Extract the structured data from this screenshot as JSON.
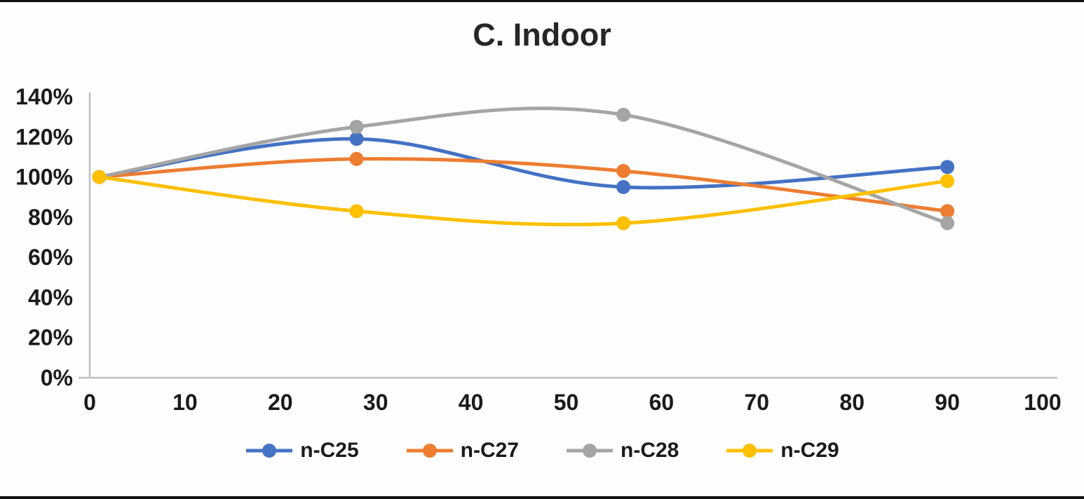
{
  "chart_data": {
    "type": "line",
    "title": "C. Indoor",
    "x": [
      1,
      28,
      56,
      90
    ],
    "series": [
      {
        "name": "n-C25",
        "color": "#4472C4",
        "values": [
          100,
          119,
          95,
          105
        ]
      },
      {
        "name": "n-C27",
        "color": "#ED7D31",
        "values": [
          100,
          109,
          103,
          83
        ]
      },
      {
        "name": "n-C28",
        "color": "#A5A5A5",
        "values": [
          100,
          125,
          131,
          77
        ]
      },
      {
        "name": "n-C29",
        "color": "#FFC000",
        "values": [
          100,
          83,
          77,
          98
        ]
      }
    ],
    "xlabel": "",
    "ylabel": "",
    "xlim": [
      0,
      100
    ],
    "ylim": [
      0,
      140
    ],
    "x_ticks": [
      0,
      10,
      20,
      30,
      40,
      50,
      60,
      70,
      80,
      90,
      100
    ],
    "y_ticks": [
      {
        "value": 0,
        "label": "0%"
      },
      {
        "value": 20,
        "label": "20%"
      },
      {
        "value": 40,
        "label": "40%"
      },
      {
        "value": 60,
        "label": "60%"
      },
      {
        "value": 80,
        "label": "80%"
      },
      {
        "value": 100,
        "label": "100%"
      },
      {
        "value": 120,
        "label": "120%"
      },
      {
        "value": 140,
        "label": "140%"
      }
    ],
    "smooth": true,
    "grid": false,
    "legend_position": "bottom",
    "axis_color": "#BFBFBF"
  }
}
